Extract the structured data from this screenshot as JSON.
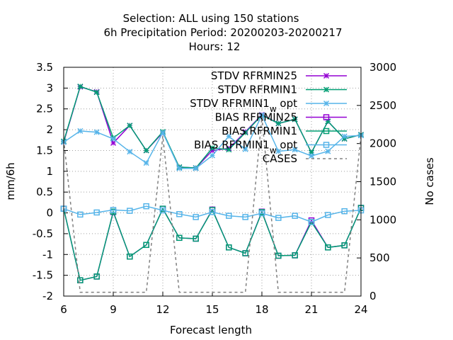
{
  "title_lines": [
    "Selection: ALL using   150 stations",
    "6h Precipitation   Period: 20200203-20200217",
    "Hours:  12"
  ],
  "chart_data": {
    "type": "line",
    "xlabel": "Forecast length",
    "ylabel": "mm/6h",
    "y2label": "No cases",
    "x": [
      6,
      7,
      8,
      9,
      10,
      11,
      12,
      13,
      14,
      15,
      16,
      17,
      18,
      19,
      20,
      21,
      22,
      23,
      24
    ],
    "xlim": [
      6,
      24
    ],
    "xticks": [
      6,
      9,
      12,
      15,
      18,
      21,
      24
    ],
    "ylim": [
      -2,
      3.5
    ],
    "yticks": [
      -2,
      -1.5,
      -1,
      -0.5,
      0,
      0.5,
      1,
      1.5,
      2,
      2.5,
      3,
      3.5
    ],
    "y2lim": [
      0,
      3000
    ],
    "y2ticks": [
      0,
      500,
      1000,
      1500,
      2000,
      2500,
      3000
    ],
    "grid": true,
    "legend_position": "top-right",
    "series": [
      {
        "name": "STDV RFRMIN25",
        "axis": "y",
        "color": "#9400d3",
        "marker": "x",
        "values": [
          1.7,
          3.03,
          2.91,
          1.68,
          2.1,
          1.5,
          1.93,
          1.1,
          1.08,
          1.5,
          1.55,
          1.95,
          2.36,
          2.15,
          2.25,
          1.45,
          2.2,
          1.78,
          1.88
        ]
      },
      {
        "name": "STDV RFRMIN1",
        "axis": "y",
        "color": "#009e73",
        "marker": "x",
        "values": [
          1.72,
          3.04,
          2.9,
          1.8,
          2.1,
          1.5,
          1.95,
          1.1,
          1.08,
          1.56,
          1.52,
          1.93,
          2.35,
          2.15,
          2.25,
          1.45,
          2.2,
          1.78,
          1.88
        ]
      },
      {
        "name": "STDV RFRMIN1_w opt",
        "axis": "y",
        "color": "#56b4e9",
        "marker": "x",
        "values": [
          1.7,
          1.97,
          1.94,
          1.78,
          1.47,
          1.2,
          1.93,
          1.07,
          1.07,
          1.38,
          1.84,
          1.53,
          2.35,
          1.48,
          1.52,
          1.37,
          1.48,
          1.84,
          1.86
        ]
      },
      {
        "name": "BIAS RFRMIN25",
        "axis": "y",
        "color": "#9400d3",
        "marker": "square",
        "values": [
          0.1,
          -1.62,
          -1.53,
          0.02,
          -1.05,
          -0.77,
          0.1,
          -0.6,
          -0.62,
          0.08,
          -0.83,
          -0.97,
          0.03,
          -1.03,
          -1.02,
          -0.18,
          -0.83,
          -0.78,
          0.12
        ]
      },
      {
        "name": "BIAS RFRMIN1",
        "axis": "y",
        "color": "#009e73",
        "marker": "square",
        "values": [
          0.1,
          -1.62,
          -1.53,
          0.03,
          -1.05,
          -0.77,
          0.1,
          -0.6,
          -0.62,
          0.07,
          -0.83,
          -0.97,
          0.02,
          -1.03,
          -1.02,
          -0.22,
          -0.83,
          -0.78,
          0.12
        ]
      },
      {
        "name": "BIAS RFRMIN1_w opt",
        "axis": "y",
        "color": "#56b4e9",
        "marker": "square",
        "values": [
          0.1,
          -0.04,
          0.01,
          0.07,
          0.05,
          0.16,
          0.06,
          -0.03,
          -0.1,
          0.02,
          -0.07,
          -0.1,
          -0.01,
          -0.12,
          -0.07,
          -0.22,
          -0.05,
          0.04,
          0.06
        ]
      },
      {
        "name": "CASES",
        "axis": "y2",
        "color": "#808080",
        "marker": "none",
        "dashed": true,
        "values": [
          2050,
          50,
          50,
          50,
          50,
          50,
          2100,
          50,
          50,
          50,
          50,
          50,
          2350,
          50,
          50,
          50,
          50,
          50,
          2100
        ]
      }
    ]
  },
  "legend_entries": [
    {
      "pre": "STDV RFRMIN25",
      "sub": "",
      "post": ""
    },
    {
      "pre": "STDV RFRMIN1",
      "sub": "",
      "post": ""
    },
    {
      "pre": "STDV RFRMIN1",
      "sub": "w",
      "post": " opt"
    },
    {
      "pre": "BIAS RFRMIN25",
      "sub": "",
      "post": ""
    },
    {
      "pre": "BIAS RFRMIN1",
      "sub": "",
      "post": ""
    },
    {
      "pre": "BIAS RFRMIN1",
      "sub": "w",
      "post": " opt"
    },
    {
      "pre": "CASES",
      "sub": "",
      "post": ""
    }
  ]
}
